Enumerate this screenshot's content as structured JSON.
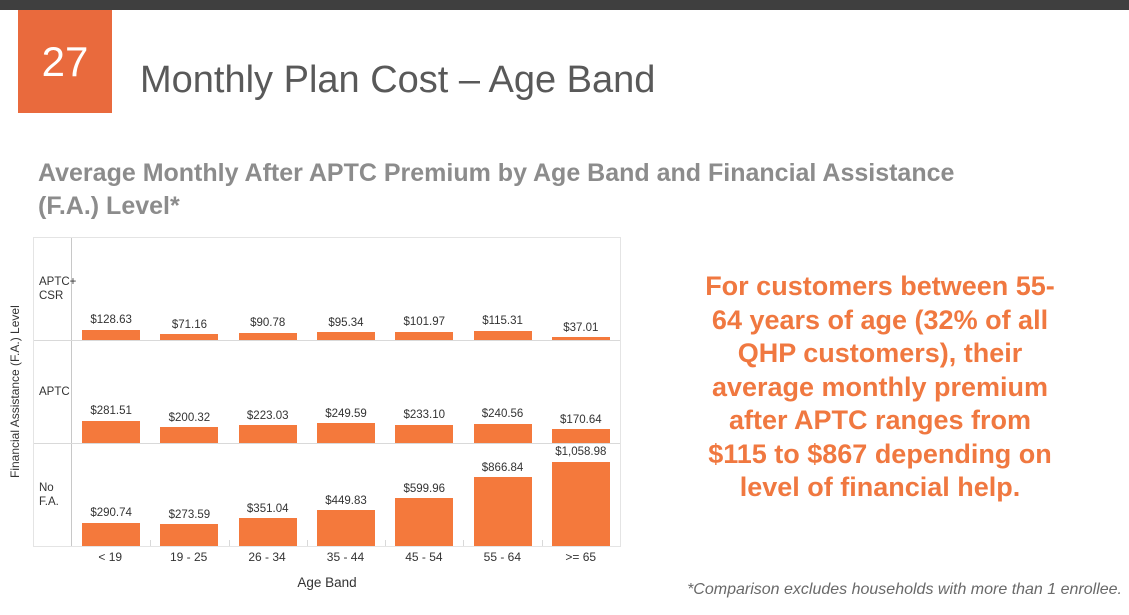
{
  "slide": {
    "number": "27",
    "title": "Monthly Plan Cost – Age Band",
    "subtitle_lines": [
      "Average Monthly After APTC Premium by Age Band and Financial Assistance",
      "(F.A.) Level*"
    ],
    "callout_lines": [
      "For customers between 55-",
      "64 years of age (32% of all",
      "QHP customers), their",
      "average monthly premium",
      "after APTC ranges from",
      "$115 to $867 depending on",
      "level of financial help."
    ],
    "footnote": "*Comparison excludes households with more than 1 enrollee."
  },
  "colors": {
    "header_bar": "#3F3F3F",
    "slide_number_bg": "#E96A3D",
    "bar_fill": "#F4793C",
    "callout_text": "#F07840",
    "title_text": "#595959",
    "subtitle_text": "#8C8C8C",
    "grid_line": "#D9D9D9",
    "footnote_text": "#696969"
  },
  "chart_data": {
    "type": "bar",
    "title": "Average Monthly After APTC Premium by Age Band and Financial Assistance (F.A.) Level*",
    "xlabel": "Age Band",
    "ylabel": "Financial Assistance (F.A.) Level",
    "categories": [
      "< 19",
      "19 - 25",
      "26 - 34",
      "35 - 44",
      "45 - 54",
      "55 - 64",
      ">= 65"
    ],
    "layout_hint": "three vertically stacked panels (small multiples), one per F.A. level, shared x axis, shared dollar scale, no gridlines, value labels above bars",
    "legend": "none",
    "bar_color": "#F4793C",
    "value_prefix": "$",
    "series": [
      {
        "name": "APTC+ CSR",
        "axis_label": "APTC+\nCSR",
        "values": [
          128.63,
          71.16,
          90.78,
          95.34,
          101.97,
          115.31,
          37.01
        ]
      },
      {
        "name": "APTC",
        "axis_label": "APTC",
        "values": [
          281.51,
          200.32,
          223.03,
          249.59,
          233.1,
          240.56,
          170.64
        ]
      },
      {
        "name": "No F.A.",
        "axis_label": "No\nF.A.",
        "values": [
          290.74,
          273.59,
          351.04,
          449.83,
          599.96,
          866.84,
          1058.98
        ]
      }
    ]
  }
}
